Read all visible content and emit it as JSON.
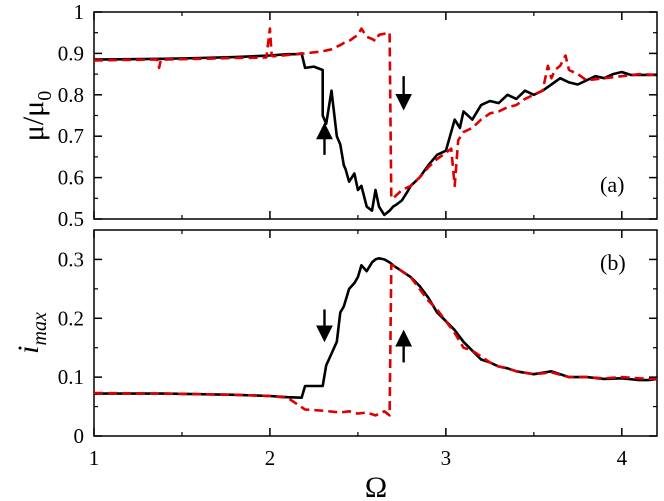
{
  "chart_data": [
    {
      "type": "line",
      "panel_label": "(a)",
      "ylabel": "μ/μ",
      "ylabel_sub": "0",
      "xlim": [
        1,
        4.2
      ],
      "ylim": [
        0.5,
        1.0
      ],
      "x_ticks": [
        1,
        2,
        3,
        4
      ],
      "y_ticks": [
        0.5,
        0.6,
        0.7,
        0.8,
        0.9,
        1
      ],
      "y_tick_labels": [
        "0.5",
        "0.6",
        "0.7",
        "0.8",
        "0.9",
        "1"
      ],
      "grid": false,
      "series": [
        {
          "color": "#000000",
          "dash": "solid",
          "x": [
            1.0,
            1.2,
            1.4,
            1.6,
            1.8,
            1.9,
            2.0,
            2.1,
            2.15,
            2.18,
            2.2,
            2.25,
            2.3,
            2.3,
            2.32,
            2.35,
            2.38,
            2.4,
            2.42,
            2.43,
            2.45,
            2.48,
            2.5,
            2.52,
            2.55,
            2.58,
            2.6,
            2.62,
            2.65,
            2.68,
            2.7,
            2.72,
            2.75,
            2.78,
            2.8,
            2.85,
            2.9,
            2.95,
            3.0,
            3.05,
            3.08,
            3.1,
            3.15,
            3.2,
            3.25,
            3.3,
            3.35,
            3.4,
            3.45,
            3.5,
            3.55,
            3.6,
            3.65,
            3.7,
            3.75,
            3.8,
            3.85,
            3.9,
            3.95,
            4.0,
            4.05,
            4.1,
            4.2
          ],
          "y": [
            0.885,
            0.886,
            0.887,
            0.889,
            0.891,
            0.893,
            0.895,
            0.898,
            0.898,
            0.9,
            0.865,
            0.868,
            0.86,
            0.75,
            0.73,
            0.81,
            0.7,
            0.68,
            0.63,
            0.62,
            0.59,
            0.61,
            0.57,
            0.58,
            0.53,
            0.52,
            0.57,
            0.53,
            0.51,
            0.52,
            0.53,
            0.535,
            0.545,
            0.565,
            0.58,
            0.6,
            0.63,
            0.655,
            0.665,
            0.74,
            0.72,
            0.76,
            0.74,
            0.775,
            0.785,
            0.78,
            0.8,
            0.79,
            0.81,
            0.8,
            0.81,
            0.825,
            0.84,
            0.83,
            0.825,
            0.835,
            0.845,
            0.84,
            0.85,
            0.855,
            0.848,
            0.848,
            0.848
          ]
        },
        {
          "color": "#dd0000",
          "dash": "dashed",
          "x": [
            1.0,
            1.3,
            1.36,
            1.37,
            1.38,
            1.6,
            1.8,
            1.98,
            2.0,
            2.01,
            2.02,
            2.2,
            2.3,
            2.35,
            2.4,
            2.42,
            2.45,
            2.5,
            2.52,
            2.55,
            2.58,
            2.6,
            2.62,
            2.68,
            2.69,
            2.7,
            2.75,
            2.8,
            2.85,
            2.9,
            2.95,
            3.0,
            3.03,
            3.05,
            3.07,
            3.1,
            3.15,
            3.2,
            3.25,
            3.3,
            3.35,
            3.4,
            3.45,
            3.5,
            3.55,
            3.58,
            3.6,
            3.62,
            3.65,
            3.68,
            3.7,
            3.75,
            3.8,
            3.9,
            4.0,
            4.1,
            4.2
          ],
          "y": [
            0.883,
            0.885,
            0.885,
            0.865,
            0.885,
            0.887,
            0.889,
            0.89,
            0.96,
            0.895,
            0.893,
            0.9,
            0.905,
            0.91,
            0.92,
            0.925,
            0.93,
            0.945,
            0.96,
            0.94,
            0.935,
            0.93,
            0.945,
            0.95,
            0.55,
            0.55,
            0.57,
            0.58,
            0.6,
            0.625,
            0.645,
            0.66,
            0.67,
            0.58,
            0.69,
            0.71,
            0.72,
            0.74,
            0.755,
            0.76,
            0.77,
            0.775,
            0.79,
            0.8,
            0.81,
            0.87,
            0.84,
            0.86,
            0.87,
            0.895,
            0.86,
            0.85,
            0.835,
            0.84,
            0.845,
            0.85,
            0.848
          ]
        }
      ],
      "arrows": [
        {
          "x": 2.31,
          "y_from": 0.655,
          "y_to": 0.725
        },
        {
          "x": 2.76,
          "y_from": 0.845,
          "y_to": 0.77
        }
      ]
    },
    {
      "type": "line",
      "panel_label": "(b)",
      "ylabel": "i",
      "ylabel_sub": "max",
      "xlabel": "Ω",
      "xlim": [
        1,
        4.2
      ],
      "ylim": [
        0,
        0.35
      ],
      "x_ticks": [
        1,
        2,
        3,
        4
      ],
      "x_tick_labels": [
        "1",
        "2",
        "3",
        "4"
      ],
      "y_ticks": [
        0,
        0.1,
        0.2,
        0.3
      ],
      "y_tick_labels": [
        "0",
        "0.1",
        "0.2",
        "0.3"
      ],
      "grid": false,
      "series": [
        {
          "color": "#000000",
          "dash": "solid",
          "x": [
            1.0,
            1.2,
            1.4,
            1.6,
            1.8,
            2.0,
            2.1,
            2.18,
            2.2,
            2.22,
            2.3,
            2.32,
            2.35,
            2.38,
            2.4,
            2.42,
            2.45,
            2.48,
            2.5,
            2.52,
            2.55,
            2.58,
            2.6,
            2.62,
            2.65,
            2.68,
            2.7,
            2.75,
            2.8,
            2.85,
            2.9,
            2.95,
            3.0,
            3.05,
            3.1,
            3.15,
            3.2,
            3.25,
            3.3,
            3.35,
            3.4,
            3.5,
            3.6,
            3.7,
            3.8,
            3.9,
            4.0,
            4.1,
            4.15,
            4.2
          ],
          "y": [
            0.072,
            0.072,
            0.072,
            0.071,
            0.07,
            0.068,
            0.066,
            0.065,
            0.085,
            0.085,
            0.085,
            0.12,
            0.14,
            0.16,
            0.21,
            0.22,
            0.25,
            0.26,
            0.27,
            0.29,
            0.28,
            0.295,
            0.3,
            0.302,
            0.3,
            0.295,
            0.29,
            0.28,
            0.27,
            0.255,
            0.235,
            0.21,
            0.195,
            0.18,
            0.16,
            0.145,
            0.13,
            0.125,
            0.118,
            0.115,
            0.11,
            0.105,
            0.11,
            0.1,
            0.1,
            0.097,
            0.098,
            0.095,
            0.095,
            0.097
          ]
        },
        {
          "color": "#dd0000",
          "dash": "dashed",
          "x": [
            1.0,
            1.4,
            1.8,
            2.0,
            2.1,
            2.2,
            2.3,
            2.4,
            2.45,
            2.5,
            2.55,
            2.6,
            2.65,
            2.68,
            2.69,
            2.7,
            2.75,
            2.8,
            2.85,
            2.9,
            2.95,
            3.0,
            3.05,
            3.1,
            3.15,
            3.2,
            3.25,
            3.3,
            3.35,
            3.4,
            3.5,
            3.6,
            3.7,
            3.8,
            3.9,
            4.0,
            4.1,
            4.2
          ],
          "y": [
            0.073,
            0.072,
            0.07,
            0.068,
            0.065,
            0.045,
            0.043,
            0.04,
            0.042,
            0.038,
            0.04,
            0.035,
            0.042,
            0.035,
            0.29,
            0.29,
            0.28,
            0.27,
            0.25,
            0.23,
            0.215,
            0.195,
            0.175,
            0.15,
            0.145,
            0.135,
            0.125,
            0.118,
            0.115,
            0.11,
            0.105,
            0.108,
            0.1,
            0.1,
            0.098,
            0.1,
            0.098,
            0.097
          ]
        }
      ],
      "arrows": [
        {
          "x": 2.31,
          "y_from": 0.215,
          "y_to": 0.165
        },
        {
          "x": 2.76,
          "y_from": 0.125,
          "y_to": 0.175
        }
      ]
    }
  ]
}
